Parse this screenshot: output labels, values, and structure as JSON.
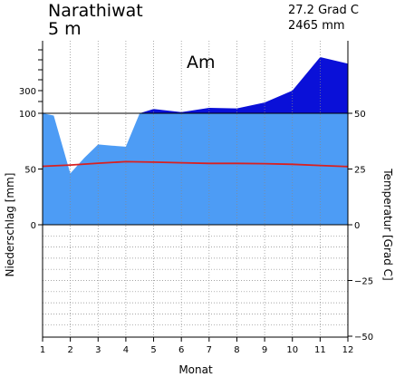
{
  "header": {
    "station": "Narathiwat",
    "elevation": "5 m",
    "mean_temperature": "27.2 Grad C",
    "annual_precipitation": "2465 mm",
    "climate_class": "Am"
  },
  "colors": {
    "precip_fill": "#4d9cf5",
    "precip_excess": "#0a10d8",
    "temperature_line": "#d92020",
    "grid": "#888888"
  },
  "chart_data": {
    "type": "area",
    "x": [
      1,
      2,
      3,
      4,
      5,
      6,
      7,
      8,
      9,
      10,
      11,
      12
    ],
    "xlabel": "Monat",
    "x_ticks": [
      "1",
      "2",
      "3",
      "4",
      "5",
      "6",
      "7",
      "8",
      "9",
      "10",
      "11",
      "12"
    ],
    "left_axis": {
      "label": "Niederschlag [mm]",
      "ticks": [
        "0",
        "50",
        "100",
        "300"
      ],
      "scale": "0-100 mm linear, above 100 mm compressed"
    },
    "right_axis": {
      "label": "Temperatur [Grad C]",
      "ticks": [
        "50",
        "25",
        "0",
        "−25",
        "−50"
      ],
      "ylim": [
        -50,
        50
      ]
    },
    "grid": true,
    "series": [
      {
        "kind": "precipitation",
        "unit": "mm",
        "x": [
          1,
          1.4,
          2,
          2.5,
          3,
          3.5,
          4,
          4.5,
          5,
          6,
          7,
          8,
          9,
          10,
          11,
          12
        ],
        "values": [
          105,
          98,
          46,
          60,
          72,
          71,
          70,
          100,
          140,
          110,
          150,
          145,
          200,
          310,
          620,
          560
        ]
      },
      {
        "kind": "temperature",
        "unit": "Grad C",
        "x": [
          1,
          2,
          3,
          4,
          5,
          6,
          7,
          8,
          9,
          10,
          11,
          12
        ],
        "values": [
          26.2,
          26.8,
          27.6,
          28.3,
          28.1,
          27.8,
          27.5,
          27.5,
          27.4,
          27.1,
          26.6,
          26.1
        ]
      }
    ]
  }
}
